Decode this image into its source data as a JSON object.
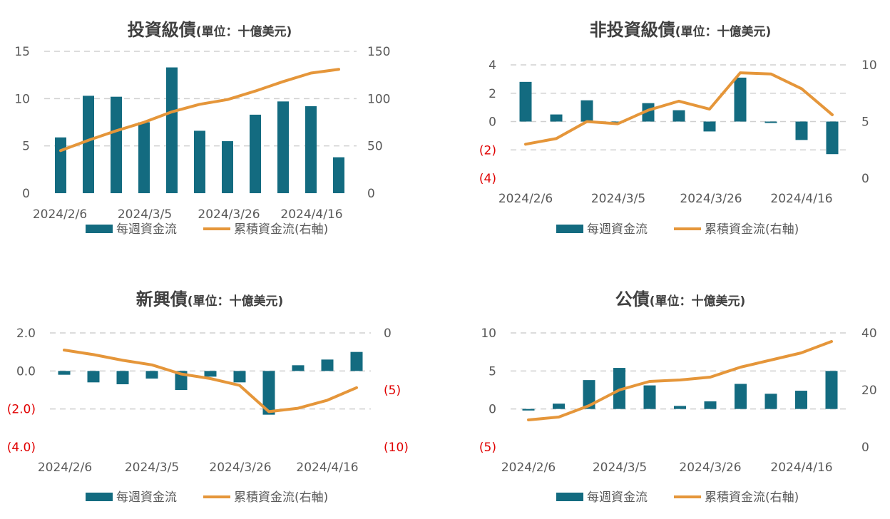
{
  "legend": {
    "bar_label": "每週資金流",
    "line_label": "累積資金流(右軸)"
  },
  "colors": {
    "bar": "#136b80",
    "line": "#e5963a",
    "negative_tick": "#e00000"
  },
  "chart_data": [
    {
      "type": "bar+line",
      "title": "投資級債",
      "subtitle": "(單位：十億美元)",
      "x_tick_labels": [
        "2024/2/6",
        "2024/3/5",
        "2024/3/26",
        "2024/4/16"
      ],
      "weekly_flow": [
        5.9,
        10.3,
        10.2,
        7.5,
        13.3,
        6.6,
        5.5,
        8.3,
        9.7,
        9.2,
        3.8
      ],
      "cumulative_flow": [
        45,
        56,
        66,
        75,
        86,
        94,
        99,
        108,
        118,
        127,
        131
      ],
      "y_left": {
        "range": [
          0,
          15
        ],
        "ticks": [
          "15",
          "10",
          "5",
          "0"
        ]
      },
      "y_right": {
        "range": [
          0,
          150
        ],
        "ticks": [
          "150",
          "100",
          "50",
          "0"
        ]
      },
      "grid": true,
      "legend_position": "bottom"
    },
    {
      "type": "bar+line",
      "title": "非投資級債",
      "subtitle": "(單位：十億美元)",
      "x_tick_labels": [
        "2024/2/6",
        "2024/3/5",
        "2024/3/26",
        "2024/4/16"
      ],
      "weekly_flow": [
        2.8,
        0.5,
        1.5,
        -0.1,
        1.3,
        0.8,
        -0.7,
        3.1,
        -0.1,
        -1.3,
        -2.3
      ],
      "cumulative_flow": [
        3.0,
        3.5,
        5.0,
        4.8,
        6.0,
        6.8,
        6.1,
        9.3,
        9.2,
        7.9,
        5.6
      ],
      "y_left": {
        "range": [
          -4,
          4
        ],
        "ticks": [
          "4",
          "2",
          "0",
          "(2)",
          "(4)"
        ]
      },
      "y_right": {
        "range": [
          0,
          10
        ],
        "ticks": [
          "10",
          "5",
          "0"
        ]
      },
      "grid": true,
      "legend_position": "bottom"
    },
    {
      "type": "bar+line",
      "title": "新興債",
      "subtitle": "(單位：十億美元)",
      "x_tick_labels": [
        "2024/2/6",
        "2024/3/5",
        "2024/3/26",
        "2024/4/16"
      ],
      "weekly_flow": [
        -0.2,
        -0.6,
        -0.7,
        -0.4,
        -1.0,
        -0.3,
        -0.6,
        -2.3,
        0.3,
        0.6,
        1.0
      ],
      "cumulative_flow": [
        -1.5,
        -1.9,
        -2.4,
        -2.8,
        -3.6,
        -4.0,
        -4.6,
        -6.9,
        -6.6,
        -5.9,
        -4.8
      ],
      "y_left": {
        "range": [
          -4,
          2
        ],
        "ticks": [
          "2.0",
          "0.0",
          "(2.0)",
          "(4.0)"
        ]
      },
      "y_right": {
        "range": [
          -10,
          0
        ],
        "ticks": [
          "0",
          "(5)",
          "(10)"
        ]
      },
      "grid": true,
      "legend_position": "bottom"
    },
    {
      "type": "bar+line",
      "title": "公債",
      "subtitle": "(單位：十億美元)",
      "x_tick_labels": [
        "2024/2/6",
        "2024/3/5",
        "2024/3/26",
        "2024/4/16"
      ],
      "weekly_flow": [
        -0.2,
        0.7,
        3.8,
        5.4,
        3.1,
        0.4,
        1.0,
        3.3,
        2.0,
        2.4,
        5.0
      ],
      "cumulative_flow": [
        9.5,
        10.5,
        14.5,
        20.0,
        23.0,
        23.5,
        24.5,
        28.0,
        30.5,
        33.0,
        37.0
      ],
      "y_left": {
        "range": [
          -5,
          10
        ],
        "ticks": [
          "10",
          "5",
          "0",
          "(5)"
        ]
      },
      "y_right": {
        "range": [
          0,
          40
        ],
        "ticks": [
          "40",
          "20",
          "0"
        ]
      },
      "grid": true,
      "legend_position": "bottom"
    }
  ]
}
